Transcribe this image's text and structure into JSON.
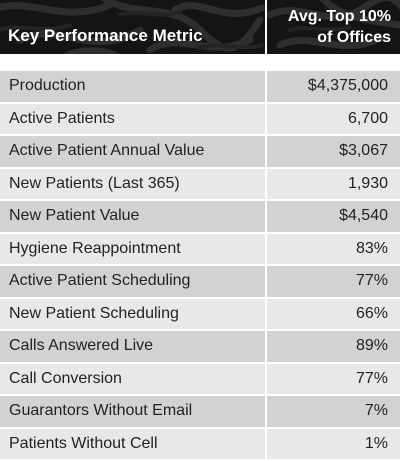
{
  "table": {
    "header": {
      "metric_label": "Key Performance Metric",
      "value_label_line1": "Avg. Top 10%",
      "value_label_line2": "of Offices"
    },
    "rows": [
      {
        "metric": "Production",
        "value": "$4,375,000"
      },
      {
        "metric": "Active Patients",
        "value": "6,700"
      },
      {
        "metric": "Active Patient Annual Value",
        "value": "$3,067"
      },
      {
        "metric": "New Patients (Last 365)",
        "value": "1,930"
      },
      {
        "metric": "New Patient Value",
        "value": "$4,540"
      },
      {
        "metric": "Hygiene Reappointment",
        "value": "83%"
      },
      {
        "metric": "Active Patient Scheduling",
        "value": "77%"
      },
      {
        "metric": "New Patient Scheduling",
        "value": "66%"
      },
      {
        "metric": "Calls Answered Live",
        "value": "89%"
      },
      {
        "metric": "Call Conversion",
        "value": "77%"
      },
      {
        "metric": "Guarantors Without Email",
        "value": "7%"
      },
      {
        "metric": "Patients Without Cell",
        "value": "1%"
      }
    ]
  },
  "colors": {
    "header_background": "#141414",
    "row_dark": "#d2d2d4",
    "row_light": "#e8e8ea",
    "text": "#222222"
  }
}
